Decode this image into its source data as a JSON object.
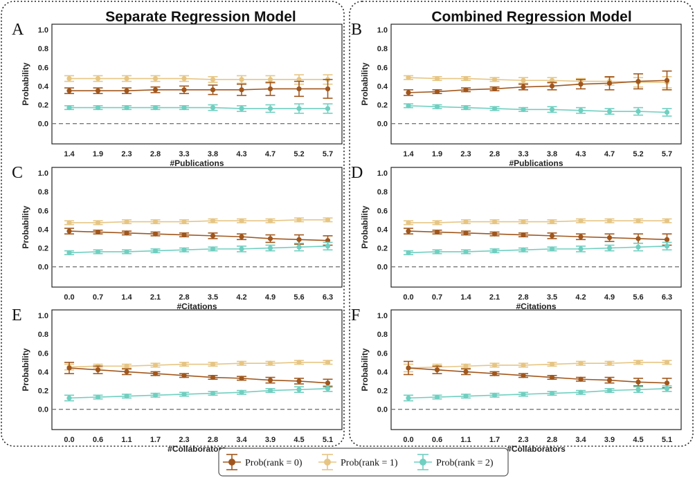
{
  "headers": {
    "left": "Separate Regression Model",
    "right": "Combined Regression Model"
  },
  "colors": {
    "rank0": "#a0561c",
    "rank1": "#e6c583",
    "rank2": "#6fcfc0",
    "zero_line": "#777777"
  },
  "legend": [
    {
      "label": "Prob(rank = 0)",
      "color": "#a0561c"
    },
    {
      "label": "Prob(rank = 1)",
      "color": "#e6c583"
    },
    {
      "label": "Prob(rank = 2)",
      "color": "#6fcfc0"
    }
  ],
  "chart_data": [
    {
      "panel": "A",
      "type": "line",
      "group": "Separate Regression Model",
      "xlabel": "#Publications",
      "ylabel": "Probability",
      "ylim": [
        -0.15,
        1.0
      ],
      "yticks": [
        "1.0",
        "0.8",
        "0.6",
        "0.4",
        "0.2",
        "0.0"
      ],
      "x": [
        "1.4",
        "1.9",
        "2.3",
        "2.8",
        "3.3",
        "3.8",
        "4.3",
        "4.7",
        "5.2",
        "5.7"
      ],
      "series": [
        {
          "name": "Prob(rank = 0)",
          "values": [
            0.35,
            0.35,
            0.35,
            0.36,
            0.36,
            0.36,
            0.36,
            0.37,
            0.37,
            0.37
          ],
          "err": [
            0.03,
            0.03,
            0.03,
            0.03,
            0.04,
            0.05,
            0.06,
            0.07,
            0.08,
            0.1
          ]
        },
        {
          "name": "Prob(rank = 1)",
          "values": [
            0.48,
            0.48,
            0.48,
            0.48,
            0.48,
            0.47,
            0.47,
            0.47,
            0.47,
            0.47
          ],
          "err": [
            0.03,
            0.03,
            0.03,
            0.03,
            0.03,
            0.03,
            0.04,
            0.04,
            0.05,
            0.05
          ]
        },
        {
          "name": "Prob(rank = 2)",
          "values": [
            0.17,
            0.17,
            0.17,
            0.17,
            0.17,
            0.17,
            0.16,
            0.16,
            0.16,
            0.16
          ],
          "err": [
            0.02,
            0.02,
            0.02,
            0.02,
            0.02,
            0.03,
            0.03,
            0.04,
            0.05,
            0.05
          ]
        }
      ]
    },
    {
      "panel": "B",
      "type": "line",
      "group": "Combined Regression Model",
      "xlabel": "#Publications",
      "ylabel": "Probability",
      "ylim": [
        -0.15,
        1.0
      ],
      "yticks": [
        "1.0",
        "0.8",
        "0.6",
        "0.4",
        "0.2",
        "0.0"
      ],
      "x": [
        "1.4",
        "1.9",
        "2.3",
        "2.8",
        "3.3",
        "3.8",
        "4.3",
        "4.7",
        "5.2",
        "5.7"
      ],
      "series": [
        {
          "name": "Prob(rank = 0)",
          "values": [
            0.33,
            0.34,
            0.36,
            0.37,
            0.39,
            0.4,
            0.42,
            0.43,
            0.45,
            0.46
          ],
          "err": [
            0.03,
            0.02,
            0.02,
            0.02,
            0.03,
            0.04,
            0.05,
            0.07,
            0.08,
            0.1
          ]
        },
        {
          "name": "Prob(rank = 1)",
          "values": [
            0.49,
            0.48,
            0.48,
            0.47,
            0.46,
            0.46,
            0.45,
            0.45,
            0.44,
            0.44
          ],
          "err": [
            0.02,
            0.02,
            0.02,
            0.02,
            0.03,
            0.03,
            0.03,
            0.04,
            0.05,
            0.06
          ]
        },
        {
          "name": "Prob(rank = 2)",
          "values": [
            0.19,
            0.18,
            0.17,
            0.16,
            0.15,
            0.15,
            0.14,
            0.13,
            0.13,
            0.12
          ],
          "err": [
            0.02,
            0.02,
            0.02,
            0.02,
            0.02,
            0.03,
            0.03,
            0.03,
            0.04,
            0.04
          ]
        }
      ]
    },
    {
      "panel": "C",
      "type": "line",
      "group": "Separate Regression Model",
      "xlabel": "#Citations",
      "ylabel": "Probability",
      "ylim": [
        -0.15,
        1.0
      ],
      "yticks": [
        "1.0",
        "0.8",
        "0.6",
        "0.4",
        "0.2",
        "0.0"
      ],
      "x": [
        "0.0",
        "0.7",
        "1.4",
        "2.1",
        "2.8",
        "3.5",
        "4.2",
        "4.9",
        "5.6",
        "6.3"
      ],
      "series": [
        {
          "name": "Prob(rank = 0)",
          "values": [
            0.38,
            0.37,
            0.36,
            0.35,
            0.34,
            0.33,
            0.32,
            0.3,
            0.29,
            0.28
          ],
          "err": [
            0.03,
            0.02,
            0.02,
            0.02,
            0.02,
            0.03,
            0.03,
            0.04,
            0.05,
            0.05
          ]
        },
        {
          "name": "Prob(rank = 1)",
          "values": [
            0.47,
            0.47,
            0.48,
            0.48,
            0.48,
            0.49,
            0.49,
            0.49,
            0.5,
            0.5
          ],
          "err": [
            0.02,
            0.02,
            0.02,
            0.02,
            0.02,
            0.02,
            0.02,
            0.02,
            0.02,
            0.02
          ]
        },
        {
          "name": "Prob(rank = 2)",
          "values": [
            0.15,
            0.16,
            0.16,
            0.17,
            0.18,
            0.19,
            0.19,
            0.2,
            0.21,
            0.22
          ],
          "err": [
            0.02,
            0.02,
            0.02,
            0.02,
            0.02,
            0.02,
            0.03,
            0.03,
            0.04,
            0.04
          ]
        }
      ]
    },
    {
      "panel": "D",
      "type": "line",
      "group": "Combined Regression Model",
      "xlabel": "#Citations",
      "ylabel": "Probability",
      "ylim": [
        -0.15,
        1.0
      ],
      "yticks": [
        "1.0",
        "0.8",
        "0.6",
        "0.4",
        "0.2",
        "0.0"
      ],
      "x": [
        "0.0",
        "0.7",
        "1.4",
        "2.1",
        "2.8",
        "3.5",
        "4.2",
        "4.9",
        "5.6",
        "6.3"
      ],
      "series": [
        {
          "name": "Prob(rank = 0)",
          "values": [
            0.38,
            0.37,
            0.36,
            0.35,
            0.34,
            0.33,
            0.32,
            0.31,
            0.3,
            0.29
          ],
          "err": [
            0.03,
            0.02,
            0.02,
            0.02,
            0.02,
            0.03,
            0.03,
            0.04,
            0.05,
            0.06
          ]
        },
        {
          "name": "Prob(rank = 1)",
          "values": [
            0.47,
            0.47,
            0.48,
            0.48,
            0.48,
            0.48,
            0.49,
            0.49,
            0.49,
            0.49
          ],
          "err": [
            0.02,
            0.02,
            0.02,
            0.02,
            0.02,
            0.02,
            0.02,
            0.02,
            0.02,
            0.02
          ]
        },
        {
          "name": "Prob(rank = 2)",
          "values": [
            0.15,
            0.16,
            0.16,
            0.17,
            0.18,
            0.19,
            0.19,
            0.2,
            0.21,
            0.22
          ],
          "err": [
            0.02,
            0.02,
            0.02,
            0.02,
            0.02,
            0.02,
            0.03,
            0.03,
            0.04,
            0.04
          ]
        }
      ]
    },
    {
      "panel": "E",
      "type": "line",
      "group": "Separate Regression Model",
      "xlabel": "#Collaborators",
      "ylabel": "Probability",
      "ylim": [
        -0.15,
        1.0
      ],
      "yticks": [
        "1.0",
        "0.8",
        "0.6",
        "0.4",
        "0.2",
        "0.0"
      ],
      "x": [
        "0.0",
        "0.6",
        "1.1",
        "1.7",
        "2.3",
        "2.8",
        "3.4",
        "3.9",
        "4.5",
        "5.1"
      ],
      "series": [
        {
          "name": "Prob(rank = 0)",
          "values": [
            0.44,
            0.42,
            0.4,
            0.38,
            0.36,
            0.34,
            0.33,
            0.31,
            0.3,
            0.28
          ],
          "err": [
            0.06,
            0.04,
            0.03,
            0.02,
            0.02,
            0.02,
            0.02,
            0.03,
            0.03,
            0.04
          ]
        },
        {
          "name": "Prob(rank = 1)",
          "values": [
            0.45,
            0.46,
            0.46,
            0.47,
            0.48,
            0.48,
            0.49,
            0.49,
            0.5,
            0.5
          ],
          "err": [
            0.03,
            0.02,
            0.02,
            0.02,
            0.02,
            0.02,
            0.02,
            0.02,
            0.02,
            0.02
          ]
        },
        {
          "name": "Prob(rank = 2)",
          "values": [
            0.12,
            0.13,
            0.14,
            0.15,
            0.16,
            0.17,
            0.18,
            0.2,
            0.21,
            0.22
          ],
          "err": [
            0.03,
            0.02,
            0.02,
            0.02,
            0.02,
            0.02,
            0.02,
            0.02,
            0.03,
            0.03
          ]
        }
      ]
    },
    {
      "panel": "F",
      "type": "line",
      "group": "Combined Regression Model",
      "xlabel": "#Collaborators",
      "ylabel": "Probability",
      "ylim": [
        -0.15,
        1.0
      ],
      "yticks": [
        "1.0",
        "0.8",
        "0.6",
        "0.4",
        "0.2",
        "0.0"
      ],
      "x": [
        "0.0",
        "0.6",
        "1.1",
        "1.7",
        "2.3",
        "2.8",
        "3.4",
        "3.9",
        "4.5",
        "5.1"
      ],
      "series": [
        {
          "name": "Prob(rank = 0)",
          "values": [
            0.44,
            0.42,
            0.4,
            0.38,
            0.36,
            0.34,
            0.32,
            0.31,
            0.29,
            0.28
          ],
          "err": [
            0.07,
            0.04,
            0.03,
            0.02,
            0.02,
            0.02,
            0.02,
            0.03,
            0.04,
            0.05
          ]
        },
        {
          "name": "Prob(rank = 1)",
          "values": [
            0.44,
            0.45,
            0.46,
            0.47,
            0.47,
            0.48,
            0.49,
            0.49,
            0.5,
            0.5
          ],
          "err": [
            0.04,
            0.03,
            0.02,
            0.02,
            0.02,
            0.02,
            0.02,
            0.02,
            0.02,
            0.02
          ]
        },
        {
          "name": "Prob(rank = 2)",
          "values": [
            0.12,
            0.13,
            0.14,
            0.15,
            0.16,
            0.17,
            0.18,
            0.2,
            0.21,
            0.22
          ],
          "err": [
            0.03,
            0.02,
            0.02,
            0.02,
            0.02,
            0.02,
            0.02,
            0.02,
            0.03,
            0.03
          ]
        }
      ]
    }
  ]
}
